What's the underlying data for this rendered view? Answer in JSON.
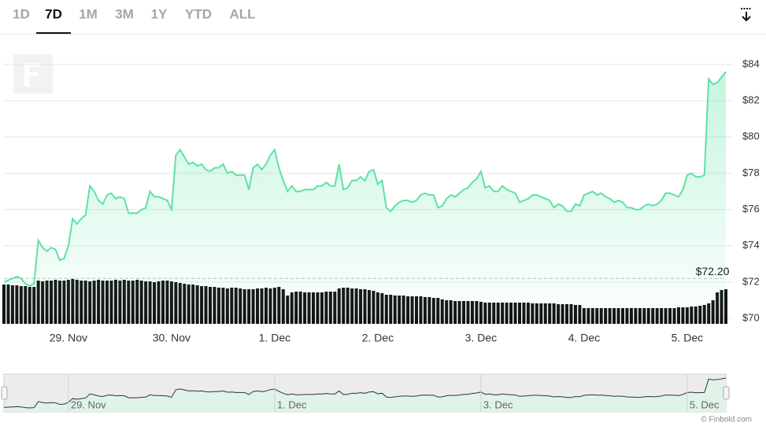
{
  "toolbar": {
    "range_options": [
      "1D",
      "7D",
      "1M",
      "3M",
      "1Y",
      "YTD",
      "ALL"
    ],
    "selected_range": "7D"
  },
  "chart_data": {
    "type": "line",
    "categories": [
      null,
      null,
      null,
      null,
      null,
      null,
      null,
      null,
      null,
      null,
      null,
      null,
      null,
      null,
      null,
      "29. Nov",
      null,
      null,
      null,
      null,
      null,
      null,
      null,
      null,
      null,
      null,
      null,
      null,
      null,
      null,
      null,
      null,
      null,
      null,
      null,
      null,
      null,
      null,
      null,
      "30. Nov",
      null,
      null,
      null,
      null,
      null,
      null,
      null,
      null,
      null,
      null,
      null,
      null,
      null,
      null,
      null,
      null,
      null,
      null,
      null,
      null,
      null,
      null,
      null,
      "1. Dec",
      null,
      null,
      null,
      null,
      null,
      null,
      null,
      null,
      null,
      null,
      null,
      null,
      null,
      null,
      null,
      null,
      null,
      null,
      null,
      null,
      null,
      null,
      null,
      "2. Dec",
      null,
      null,
      null,
      null,
      null,
      null,
      null,
      null,
      null,
      null,
      null,
      null,
      null,
      null,
      null,
      null,
      null,
      null,
      null,
      null,
      null,
      null,
      null,
      "3. Dec",
      null,
      null,
      null,
      null,
      null,
      null,
      null,
      null,
      null,
      null,
      null,
      null,
      null,
      null,
      null,
      null,
      null,
      null,
      null,
      null,
      null,
      null,
      null,
      "4. Dec",
      null,
      null,
      null,
      null,
      null,
      null,
      null,
      null,
      null,
      null,
      null,
      null,
      null,
      null,
      null,
      null,
      null,
      null,
      null,
      null,
      null,
      null,
      null,
      "5. Dec",
      null,
      null,
      null,
      null,
      null,
      null,
      null,
      null,
      null
    ],
    "values": [
      72.0,
      72.1,
      72.2,
      72.3,
      72.2,
      71.9,
      71.8,
      71.9,
      74.3,
      73.9,
      73.7,
      73.9,
      73.8,
      73.2,
      73.3,
      74.0,
      75.5,
      75.2,
      75.5,
      75.7,
      77.3,
      77.0,
      76.5,
      76.3,
      76.8,
      76.9,
      76.6,
      76.7,
      76.6,
      75.8,
      75.8,
      75.8,
      76.0,
      76.1,
      77.0,
      76.7,
      76.7,
      76.6,
      76.5,
      76.0,
      79.0,
      79.3,
      78.9,
      78.5,
      78.6,
      78.4,
      78.5,
      78.2,
      78.1,
      78.3,
      78.3,
      78.5,
      78.0,
      78.1,
      77.9,
      77.9,
      77.9,
      77.1,
      78.3,
      78.5,
      78.2,
      78.5,
      79.0,
      79.3,
      78.3,
      77.6,
      77.0,
      77.3,
      77.0,
      77.0,
      77.1,
      77.1,
      77.1,
      77.3,
      77.3,
      77.5,
      77.3,
      77.3,
      78.5,
      77.1,
      77.2,
      77.6,
      77.6,
      77.8,
      77.6,
      78.1,
      78.2,
      77.4,
      77.6,
      76.1,
      75.9,
      76.2,
      76.4,
      76.5,
      76.5,
      76.4,
      76.5,
      76.8,
      76.9,
      76.8,
      76.8,
      76.1,
      76.2,
      76.6,
      76.8,
      76.7,
      76.9,
      77.1,
      77.2,
      77.5,
      77.7,
      78.1,
      77.2,
      77.3,
      77.0,
      77.0,
      77.3,
      77.1,
      77.0,
      76.9,
      76.4,
      76.5,
      76.6,
      76.8,
      76.8,
      76.7,
      76.6,
      76.5,
      76.1,
      76.3,
      76.2,
      75.9,
      75.9,
      76.3,
      76.2,
      76.8,
      76.9,
      77.0,
      76.8,
      76.9,
      76.7,
      76.6,
      76.4,
      76.5,
      76.4,
      76.1,
      76.1,
      76.0,
      76.0,
      76.2,
      76.3,
      76.2,
      76.3,
      76.5,
      76.9,
      76.9,
      76.8,
      76.7,
      77.1,
      77.9,
      78.0,
      77.8,
      77.8,
      77.9,
      83.2,
      82.9,
      83.0,
      83.3,
      83.6
    ],
    "volume": [
      50,
      50,
      49,
      49,
      48,
      48,
      47,
      47,
      55,
      54,
      55,
      55,
      56,
      55,
      55,
      56,
      57,
      56,
      55,
      55,
      54,
      55,
      56,
      55,
      55,
      55,
      56,
      55,
      56,
      55,
      55,
      56,
      55,
      54,
      54,
      53,
      54,
      55,
      55,
      54,
      53,
      52,
      51,
      50,
      50,
      49,
      48,
      48,
      47,
      47,
      46,
      46,
      45,
      46,
      46,
      45,
      44,
      44,
      44,
      45,
      45,
      46,
      45,
      46,
      47,
      44,
      36,
      40,
      41,
      41,
      40,
      40,
      40,
      40,
      40,
      41,
      41,
      41,
      45,
      46,
      46,
      45,
      45,
      44,
      44,
      43,
      42,
      40,
      39,
      37,
      37,
      36,
      36,
      36,
      35,
      35,
      35,
      35,
      34,
      34,
      33,
      33,
      31,
      30,
      30,
      29,
      29,
      29,
      29,
      29,
      29,
      28,
      27,
      27,
      27,
      27,
      27,
      27,
      27,
      27,
      27,
      27,
      27,
      26,
      26,
      26,
      26,
      26,
      26,
      25,
      25,
      25,
      25,
      24,
      24,
      20,
      20,
      20,
      20,
      20,
      20,
      20,
      20,
      20,
      20,
      20,
      20,
      20,
      20,
      20,
      20,
      20,
      20,
      20,
      20,
      20,
      20,
      21,
      21,
      21,
      22,
      22,
      23,
      24,
      26,
      30,
      40,
      43,
      44
    ],
    "color": "#5ce3a2",
    "volume_color": "#111111",
    "ylim": [
      70,
      84
    ],
    "yticks": [
      {
        "value": 70,
        "label": "$70"
      },
      {
        "value": 72,
        "label": "$72"
      },
      {
        "value": 74,
        "label": "$74"
      },
      {
        "value": 76,
        "label": "$76"
      },
      {
        "value": 78,
        "label": "$78"
      },
      {
        "value": 80,
        "label": "$80"
      },
      {
        "value": 82,
        "label": "$82"
      },
      {
        "value": 84,
        "label": "$84"
      }
    ],
    "grid": true,
    "reference_line": {
      "value": 72.2,
      "label": "$72.20"
    }
  },
  "credit": "© Finbold.com"
}
